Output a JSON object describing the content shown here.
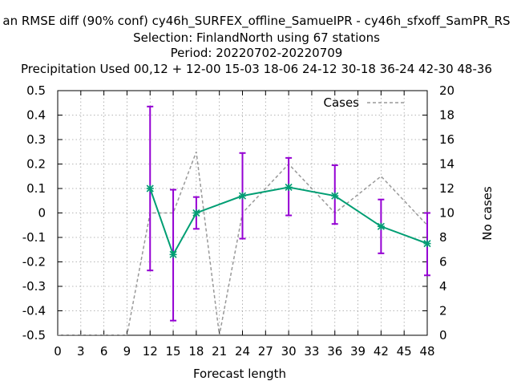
{
  "chart_data": {
    "type": "line",
    "title_lines": [
      "an RMSE diff (90% conf) cy46h_SURFEX_offline_SamueIPR - cy46h_sfxoff_SamPR_RS",
      "Selection: FinlandNorth using    67 stations",
      "Period: 20220702-20220709",
      "Precipitation   Used 00,12 + 12-00 15-03 18-06 24-12 30-18 36-24 42-30 48-36"
    ],
    "xlabel": "Forecast length",
    "ylabel": "",
    "y2label": "No cases",
    "xlim": [
      0,
      48
    ],
    "ylim": [
      -0.5,
      0.5
    ],
    "y2lim": [
      0,
      20
    ],
    "xticks": [
      0,
      3,
      6,
      9,
      12,
      15,
      18,
      21,
      24,
      27,
      30,
      33,
      36,
      39,
      42,
      45,
      48
    ],
    "yticks": [
      -0.5,
      -0.4,
      -0.3,
      -0.2,
      -0.1,
      0,
      0.1,
      0.2,
      0.3,
      0.4,
      0.5
    ],
    "yticklabels": [
      "-0.5",
      "-0.4",
      "-0.3",
      "-0.2",
      "-0.1",
      "0",
      "0.1",
      "0.2",
      "0.3",
      "0.4",
      "0.5"
    ],
    "y2ticks": [
      0,
      2,
      4,
      6,
      8,
      10,
      12,
      14,
      16,
      18,
      20
    ],
    "grid": true,
    "legend_position": "top-right",
    "series": [
      {
        "name": "",
        "axis": "y",
        "style": "line-points-errorbars",
        "color": "#009e73",
        "errorbar_color": "#9400d3",
        "x": [
          12,
          15,
          18,
          24,
          30,
          36,
          42,
          48
        ],
        "y": [
          0.1,
          -0.17,
          0.0,
          0.07,
          0.105,
          0.07,
          -0.055,
          -0.125
        ],
        "y_low": [
          -0.235,
          -0.44,
          -0.065,
          -0.105,
          -0.01,
          -0.045,
          -0.165,
          -0.255
        ],
        "y_high": [
          0.435,
          0.095,
          0.065,
          0.245,
          0.225,
          0.195,
          0.055,
          0.0
        ]
      },
      {
        "name": "Cases",
        "axis": "y2",
        "style": "dashed",
        "color": "#999999",
        "x": [
          0,
          3,
          6,
          9,
          12,
          15,
          18,
          21,
          24,
          30,
          36,
          42,
          48
        ],
        "y": [
          0,
          0,
          0,
          0,
          10,
          10,
          15,
          0,
          10,
          14,
          10,
          13,
          9
        ]
      }
    ]
  }
}
